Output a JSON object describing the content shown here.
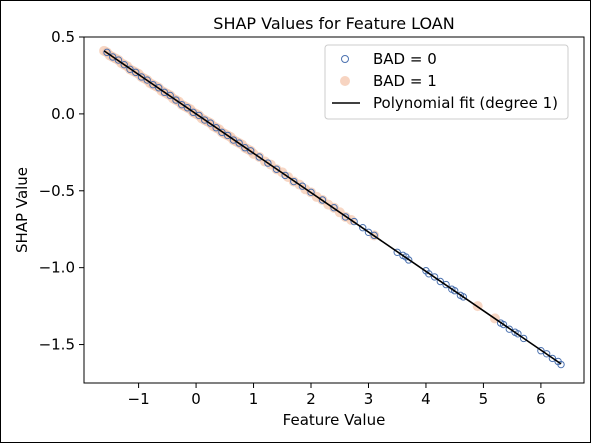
{
  "chart_data": {
    "type": "scatter",
    "title": "SHAP Values for Feature LOAN",
    "xlabel": "Feature Value",
    "ylabel": "SHAP Value",
    "xlim": [
      -1.95,
      6.75
    ],
    "ylim": [
      -1.75,
      0.5
    ],
    "xticks": [
      -1,
      0,
      1,
      2,
      3,
      4,
      5,
      6
    ],
    "xtick_labels": [
      "−1",
      "0",
      "1",
      "2",
      "3",
      "4",
      "5",
      "6"
    ],
    "yticks": [
      0.5,
      0.0,
      -0.5,
      -1.0,
      -1.5
    ],
    "ytick_labels": [
      "0.5",
      "0.0",
      "−0.5",
      "−1.0",
      "−1.5"
    ],
    "grid": false,
    "legend_position": "top-right",
    "fit": {
      "label": "Polynomial fit (degree 1)",
      "degree": 1,
      "slope": -0.256,
      "intercept": 0.0,
      "color": "#000000"
    },
    "series": [
      {
        "name": "BAD = 0",
        "marker": "hollow-circle",
        "color": "#4c72b0",
        "x": [
          -1.55,
          -1.45,
          -1.35,
          -1.25,
          -1.15,
          -1.05,
          -0.95,
          -0.85,
          -0.75,
          -0.65,
          -0.55,
          -0.45,
          -0.35,
          -0.25,
          -0.15,
          -0.05,
          0.05,
          0.15,
          0.25,
          0.35,
          0.45,
          0.55,
          0.65,
          0.75,
          0.85,
          0.95,
          1.1,
          1.25,
          1.4,
          1.55,
          1.7,
          1.85,
          2.0,
          2.2,
          2.4,
          2.6,
          2.75,
          2.9,
          3.0,
          3.1,
          3.5,
          3.6,
          3.65,
          3.7,
          4.0,
          4.05,
          4.15,
          4.25,
          4.35,
          4.45,
          4.5,
          4.6,
          4.65,
          5.3,
          5.35,
          5.45,
          5.55,
          5.6,
          5.7,
          6.0,
          6.1,
          6.2,
          6.3,
          6.35
        ],
        "y": [
          0.4,
          0.37,
          0.35,
          0.32,
          0.29,
          0.27,
          0.24,
          0.22,
          0.19,
          0.17,
          0.14,
          0.12,
          0.09,
          0.06,
          0.04,
          0.01,
          -0.01,
          -0.04,
          -0.06,
          -0.09,
          -0.12,
          -0.14,
          -0.17,
          -0.19,
          -0.22,
          -0.24,
          -0.28,
          -0.32,
          -0.36,
          -0.4,
          -0.44,
          -0.47,
          -0.51,
          -0.56,
          -0.61,
          -0.67,
          -0.7,
          -0.74,
          -0.77,
          -0.79,
          -0.9,
          -0.92,
          -0.93,
          -0.95,
          -1.02,
          -1.04,
          -1.06,
          -1.09,
          -1.11,
          -1.14,
          -1.15,
          -1.18,
          -1.19,
          -1.36,
          -1.37,
          -1.4,
          -1.42,
          -1.43,
          -1.46,
          -1.54,
          -1.56,
          -1.59,
          -1.61,
          -1.63
        ]
      },
      {
        "name": "BAD = 1",
        "marker": "filled-circle",
        "color": "#f4c6ac",
        "x": [
          -1.6,
          -1.55,
          -1.5,
          -1.45,
          -1.4,
          -1.35,
          -1.3,
          -1.25,
          -1.2,
          -1.15,
          -1.1,
          -1.05,
          -1.0,
          -0.95,
          -0.9,
          -0.85,
          -0.8,
          -0.75,
          -0.7,
          -0.65,
          -0.6,
          -0.55,
          -0.5,
          -0.45,
          -0.4,
          -0.35,
          -0.3,
          -0.25,
          -0.2,
          -0.15,
          -0.1,
          -0.05,
          0.0,
          0.05,
          0.1,
          0.15,
          0.2,
          0.25,
          0.3,
          0.35,
          0.4,
          0.45,
          0.5,
          0.55,
          0.6,
          0.65,
          0.7,
          0.75,
          0.8,
          0.85,
          0.9,
          0.95,
          1.0,
          1.1,
          1.2,
          1.3,
          1.4,
          1.5,
          1.6,
          1.7,
          1.8,
          1.9,
          2.0,
          2.1,
          2.2,
          2.3,
          2.4,
          2.5,
          2.6,
          2.7,
          3.1,
          4.9,
          5.2
        ],
        "y": [
          0.41,
          0.4,
          0.38,
          0.37,
          0.36,
          0.35,
          0.33,
          0.32,
          0.31,
          0.29,
          0.28,
          0.27,
          0.26,
          0.24,
          0.23,
          0.22,
          0.2,
          0.19,
          0.18,
          0.17,
          0.15,
          0.14,
          0.13,
          0.12,
          0.1,
          0.09,
          0.08,
          0.06,
          0.05,
          0.04,
          0.03,
          0.01,
          0.0,
          -0.01,
          -0.03,
          -0.04,
          -0.05,
          -0.06,
          -0.08,
          -0.09,
          -0.1,
          -0.12,
          -0.13,
          -0.14,
          -0.15,
          -0.17,
          -0.18,
          -0.19,
          -0.2,
          -0.22,
          -0.23,
          -0.24,
          -0.26,
          -0.28,
          -0.31,
          -0.33,
          -0.36,
          -0.38,
          -0.41,
          -0.44,
          -0.46,
          -0.49,
          -0.51,
          -0.54,
          -0.56,
          -0.59,
          -0.61,
          -0.64,
          -0.67,
          -0.69,
          -0.79,
          -1.25,
          -1.33
        ]
      }
    ]
  }
}
